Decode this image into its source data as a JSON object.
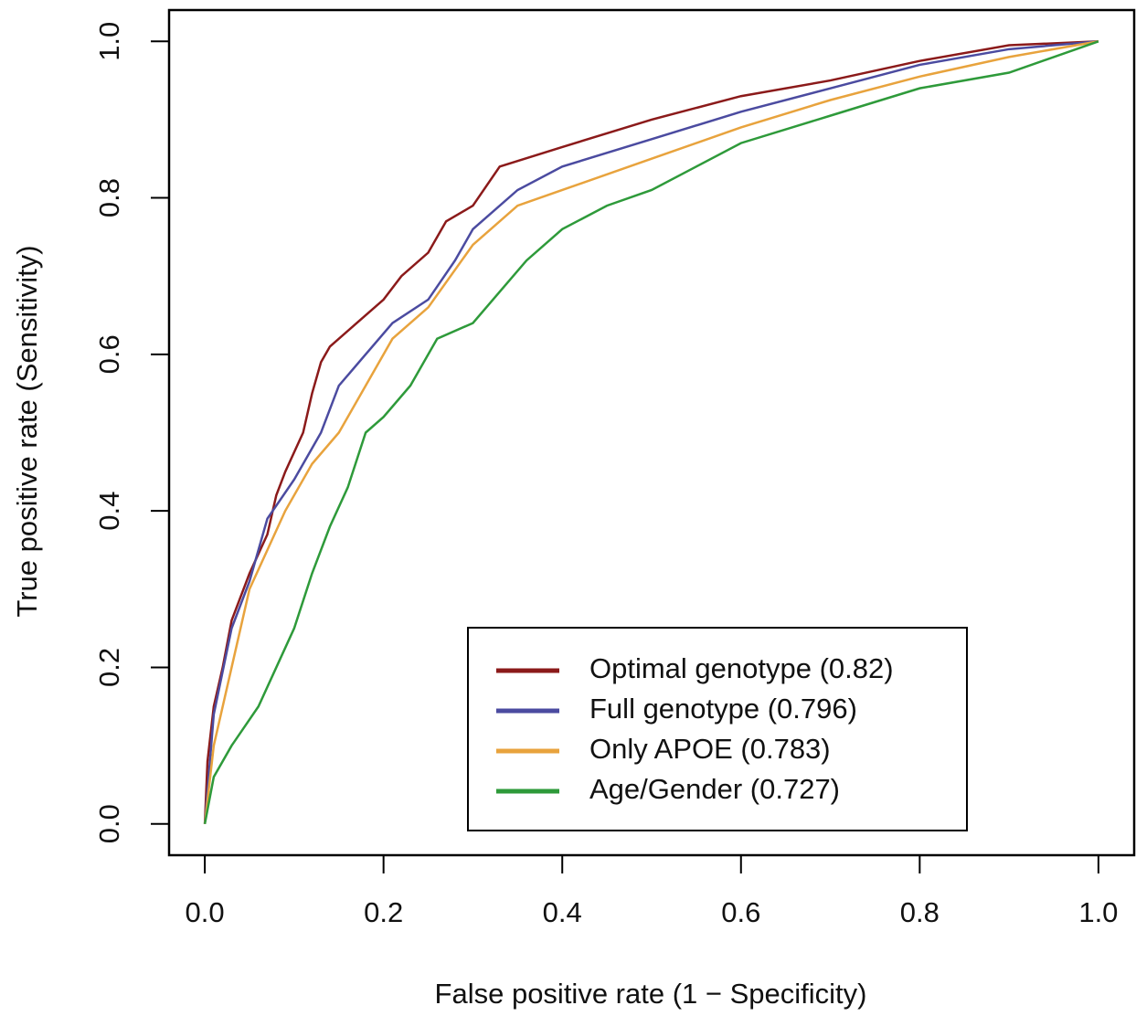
{
  "chart_data": {
    "type": "line",
    "x_label": "False positive rate (1 − Specificity)",
    "y_label": "True positive rate (Sensitivity)",
    "xlim": [
      -0.04,
      1.04
    ],
    "ylim": [
      -0.04,
      1.04
    ],
    "xticks": [
      {
        "value": 0,
        "label": "0.0"
      },
      0.2,
      0.4,
      0.6,
      0.8,
      {
        "value": 1,
        "label": "1.0"
      }
    ],
    "yticks": [
      {
        "value": 0,
        "label": "0.0"
      },
      0.2,
      0.4,
      0.6,
      0.8,
      {
        "value": 1,
        "label": "1.0"
      }
    ],
    "legend": "bottom-right",
    "series": [
      {
        "name": "Optimal genotype (0.82)",
        "color": "#8b1a1a",
        "x": [
          0,
          0.003,
          0.01,
          0.02,
          0.03,
          0.05,
          0.07,
          0.08,
          0.09,
          0.11,
          0.12,
          0.13,
          0.14,
          0.17,
          0.2,
          0.22,
          0.25,
          0.27,
          0.3,
          0.33,
          0.4,
          0.5,
          0.6,
          0.7,
          0.8,
          0.9,
          1
        ],
        "values": [
          0,
          0.08,
          0.15,
          0.2,
          0.26,
          0.32,
          0.37,
          0.42,
          0.45,
          0.5,
          0.55,
          0.59,
          0.61,
          0.64,
          0.67,
          0.7,
          0.73,
          0.77,
          0.79,
          0.84,
          0.865,
          0.9,
          0.93,
          0.95,
          0.975,
          0.995,
          1
        ]
      },
      {
        "name": "Full genotype (0.796)",
        "color": "#4b4ba0",
        "x": [
          0,
          0.01,
          0.03,
          0.05,
          0.07,
          0.1,
          0.13,
          0.15,
          0.18,
          0.21,
          0.25,
          0.28,
          0.3,
          0.35,
          0.4,
          0.5,
          0.6,
          0.7,
          0.8,
          0.9,
          1
        ],
        "values": [
          0,
          0.14,
          0.25,
          0.31,
          0.39,
          0.44,
          0.5,
          0.56,
          0.6,
          0.64,
          0.67,
          0.72,
          0.76,
          0.81,
          0.84,
          0.875,
          0.91,
          0.94,
          0.97,
          0.99,
          1
        ]
      },
      {
        "name": "Only APOE (0.783)",
        "color": "#e8a33d",
        "x": [
          0,
          0.01,
          0.03,
          0.05,
          0.07,
          0.09,
          0.12,
          0.15,
          0.18,
          0.21,
          0.25,
          0.3,
          0.35,
          0.4,
          0.5,
          0.6,
          0.7,
          0.8,
          0.9,
          1
        ],
        "values": [
          0,
          0.1,
          0.2,
          0.3,
          0.35,
          0.4,
          0.46,
          0.5,
          0.56,
          0.62,
          0.66,
          0.74,
          0.79,
          0.81,
          0.85,
          0.89,
          0.925,
          0.955,
          0.98,
          1
        ]
      },
      {
        "name": "Age/Gender (0.727)",
        "color": "#2e9a3a",
        "x": [
          0,
          0.01,
          0.03,
          0.06,
          0.08,
          0.1,
          0.12,
          0.14,
          0.16,
          0.18,
          0.2,
          0.23,
          0.26,
          0.3,
          0.33,
          0.36,
          0.4,
          0.45,
          0.5,
          0.55,
          0.6,
          0.7,
          0.8,
          0.9,
          1
        ],
        "values": [
          0,
          0.06,
          0.1,
          0.15,
          0.2,
          0.25,
          0.32,
          0.38,
          0.43,
          0.5,
          0.52,
          0.56,
          0.62,
          0.64,
          0.68,
          0.72,
          0.76,
          0.79,
          0.81,
          0.84,
          0.87,
          0.905,
          0.94,
          0.96,
          1
        ]
      }
    ]
  }
}
